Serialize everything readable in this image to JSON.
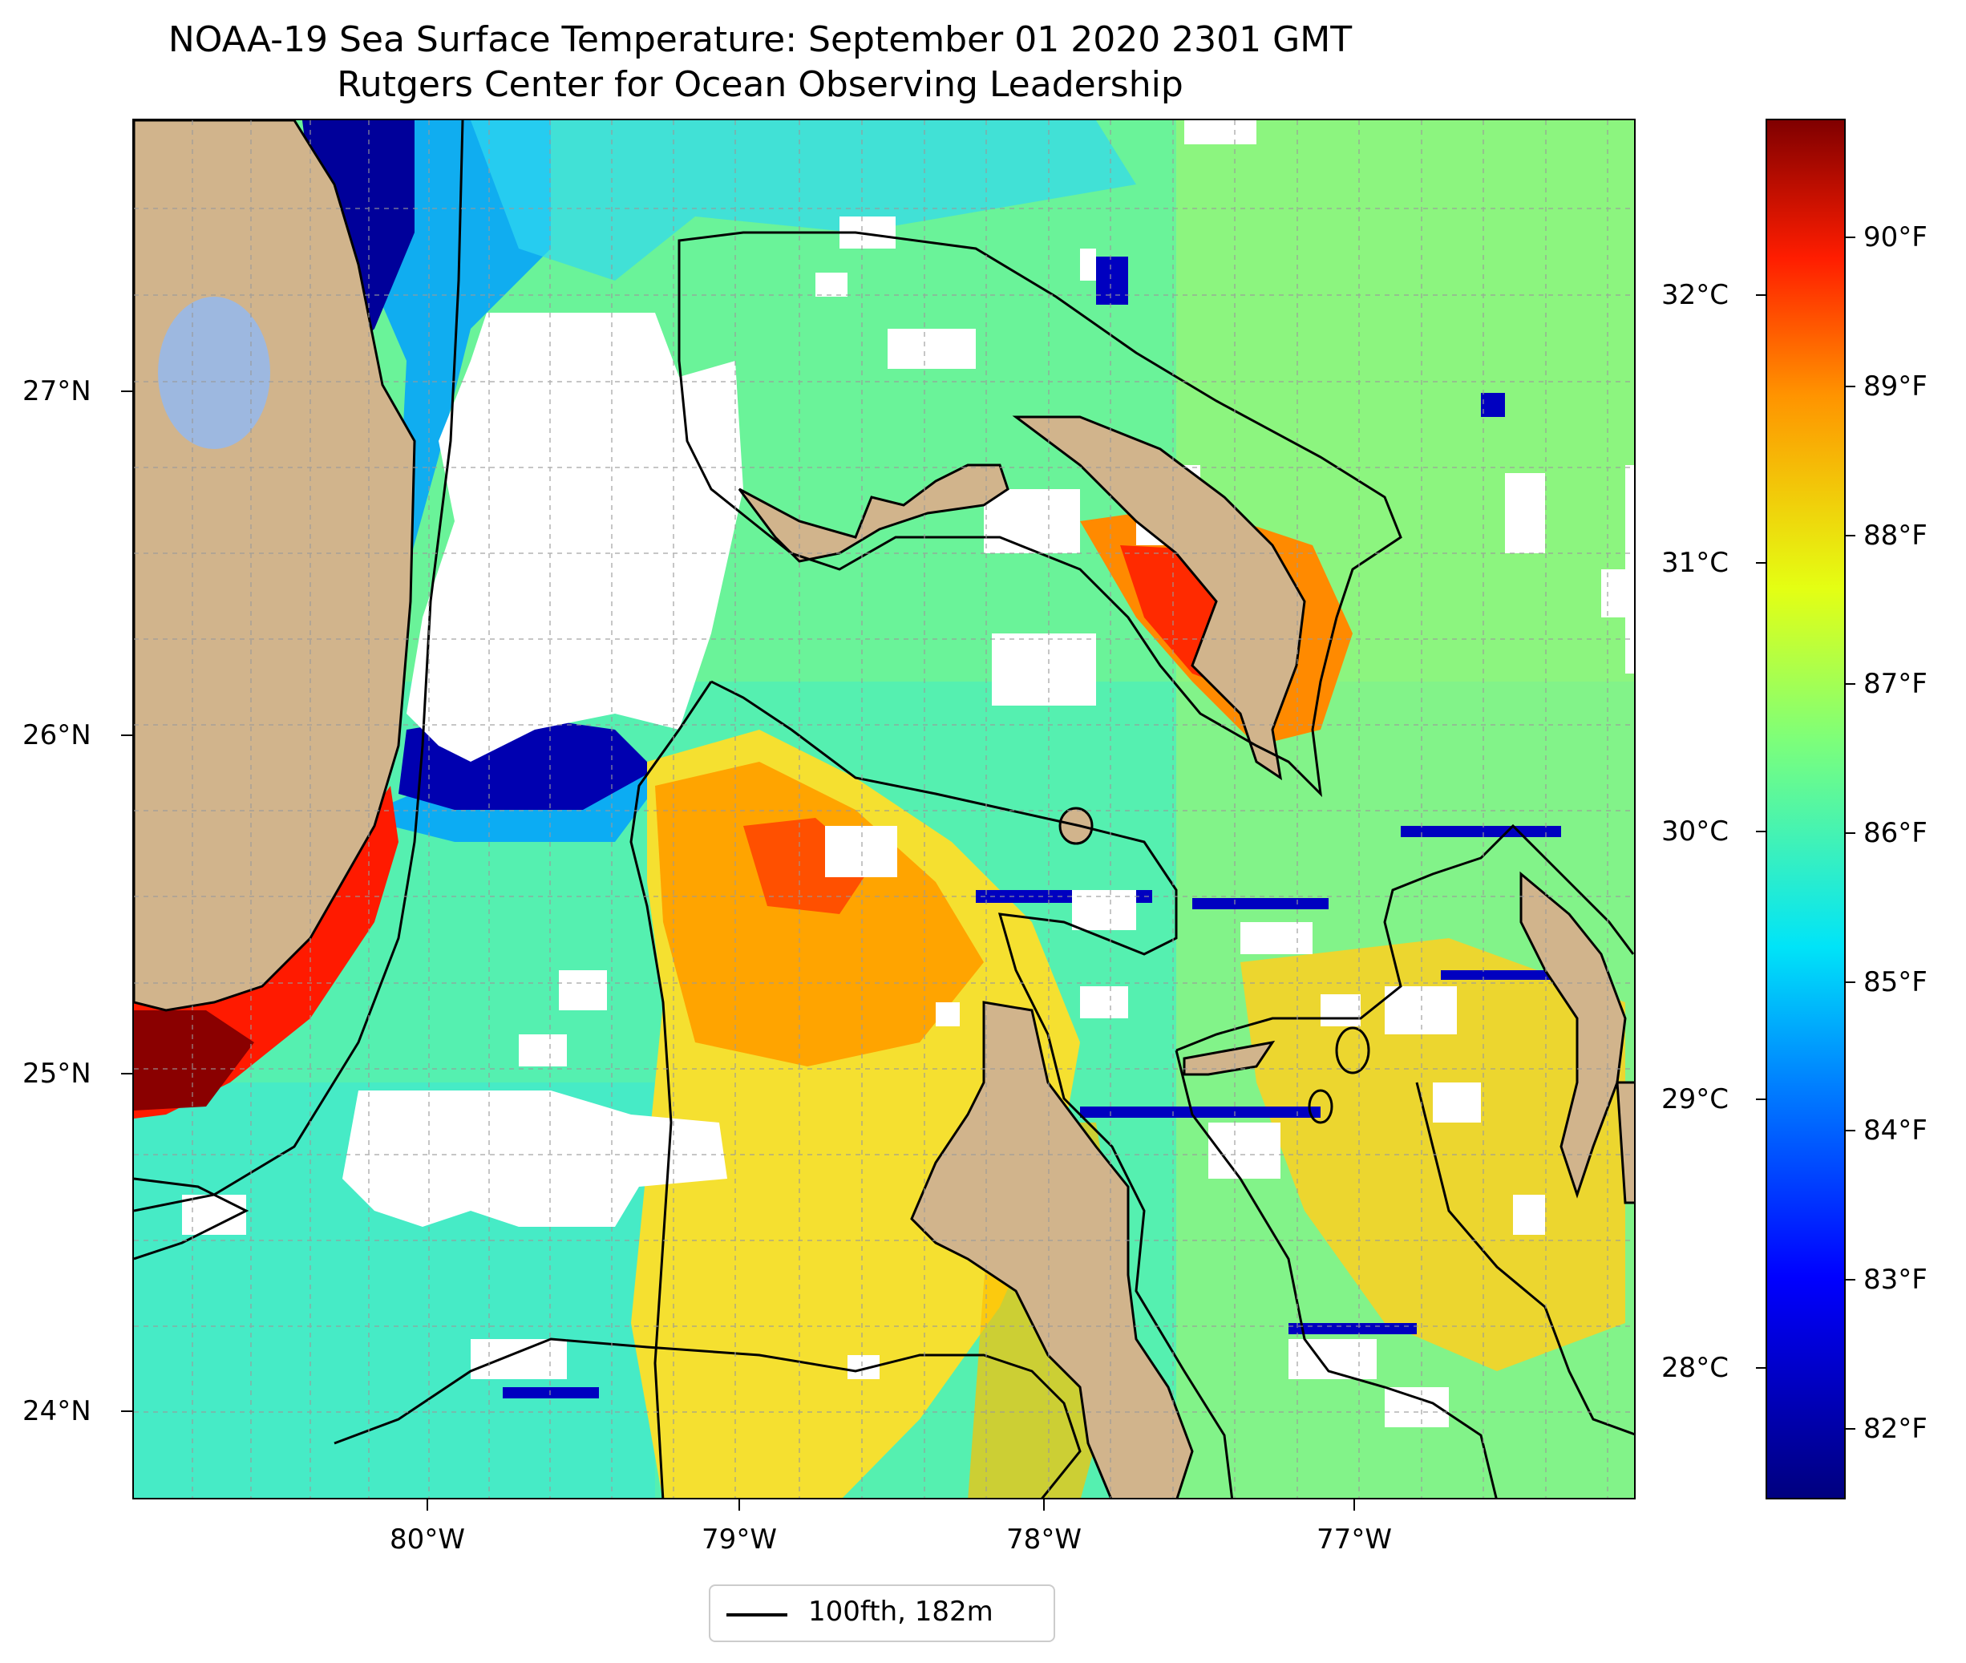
{
  "title": {
    "line1": "NOAA-19 Sea Surface Temperature: September 01 2020 2301 GMT",
    "line2": "Rutgers Center for Ocean Observing Leadership"
  },
  "axes": {
    "x_ticks": [
      "80°W",
      "79°W",
      "78°W",
      "77°W"
    ],
    "y_ticks": [
      "27°N",
      "26°N",
      "25°N",
      "24°N"
    ]
  },
  "colorbar": {
    "celsius_ticks": [
      "32°C",
      "31°C",
      "30°C",
      "29°C",
      "28°C"
    ],
    "fahrenheit_ticks": [
      "90°F",
      "89°F",
      "88°F",
      "87°F",
      "86°F",
      "85°F",
      "84°F",
      "83°F",
      "82°F"
    ],
    "colormap": [
      "#00007f",
      "#0000ff",
      "#0080ff",
      "#00e4f8",
      "#7dff7a",
      "#e4ff13",
      "#ff9400",
      "#ff1d00",
      "#800000"
    ]
  },
  "legend": {
    "label": "100fth, 182m"
  },
  "colors": {
    "land": "#d1b48c",
    "lake": "#9db8e0",
    "cloud_mask": "#ffffff",
    "contour": "#000000"
  }
}
